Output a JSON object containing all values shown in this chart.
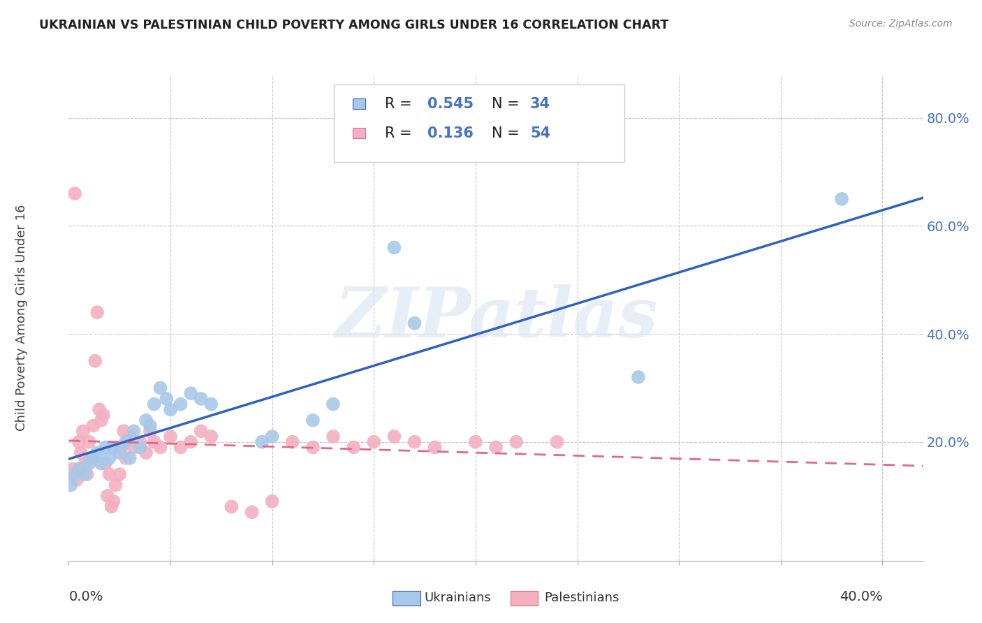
{
  "title": "UKRAINIAN VS PALESTINIAN CHILD POVERTY AMONG GIRLS UNDER 16 CORRELATION CHART",
  "source": "Source: ZipAtlas.com",
  "ylabel": "Child Poverty Among Girls Under 16",
  "ytick_values": [
    0.0,
    0.2,
    0.4,
    0.6,
    0.8
  ],
  "xtick_values": [
    0.0,
    0.05,
    0.1,
    0.15,
    0.2,
    0.25,
    0.3,
    0.35,
    0.4
  ],
  "xlim": [
    0.0,
    0.42
  ],
  "ylim": [
    -0.02,
    0.88
  ],
  "ukrainian_color": "#a8c8e8",
  "palestinian_color": "#f4b0c0",
  "ukrainian_line_color": "#3060c0",
  "palestinian_line_color": "#e06888",
  "watermark": "ZIPatlas",
  "ukrainian_points": [
    [
      0.001,
      0.12
    ],
    [
      0.003,
      0.14
    ],
    [
      0.005,
      0.15
    ],
    [
      0.008,
      0.14
    ],
    [
      0.01,
      0.16
    ],
    [
      0.012,
      0.17
    ],
    [
      0.014,
      0.18
    ],
    [
      0.016,
      0.16
    ],
    [
      0.018,
      0.19
    ],
    [
      0.02,
      0.17
    ],
    [
      0.022,
      0.19
    ],
    [
      0.025,
      0.18
    ],
    [
      0.028,
      0.2
    ],
    [
      0.03,
      0.17
    ],
    [
      0.032,
      0.22
    ],
    [
      0.035,
      0.19
    ],
    [
      0.038,
      0.24
    ],
    [
      0.04,
      0.23
    ],
    [
      0.042,
      0.27
    ],
    [
      0.045,
      0.3
    ],
    [
      0.048,
      0.28
    ],
    [
      0.05,
      0.26
    ],
    [
      0.055,
      0.27
    ],
    [
      0.06,
      0.29
    ],
    [
      0.065,
      0.28
    ],
    [
      0.07,
      0.27
    ],
    [
      0.095,
      0.2
    ],
    [
      0.1,
      0.21
    ],
    [
      0.12,
      0.24
    ],
    [
      0.13,
      0.27
    ],
    [
      0.16,
      0.56
    ],
    [
      0.17,
      0.42
    ],
    [
      0.28,
      0.32
    ],
    [
      0.38,
      0.65
    ]
  ],
  "palestinian_points": [
    [
      0.001,
      0.14
    ],
    [
      0.002,
      0.15
    ],
    [
      0.003,
      0.66
    ],
    [
      0.004,
      0.13
    ],
    [
      0.005,
      0.2
    ],
    [
      0.006,
      0.18
    ],
    [
      0.007,
      0.22
    ],
    [
      0.008,
      0.16
    ],
    [
      0.009,
      0.14
    ],
    [
      0.01,
      0.2
    ],
    [
      0.011,
      0.17
    ],
    [
      0.012,
      0.23
    ],
    [
      0.013,
      0.35
    ],
    [
      0.014,
      0.44
    ],
    [
      0.015,
      0.26
    ],
    [
      0.016,
      0.24
    ],
    [
      0.017,
      0.25
    ],
    [
      0.018,
      0.16
    ],
    [
      0.019,
      0.1
    ],
    [
      0.02,
      0.14
    ],
    [
      0.021,
      0.08
    ],
    [
      0.022,
      0.09
    ],
    [
      0.023,
      0.12
    ],
    [
      0.025,
      0.14
    ],
    [
      0.026,
      0.19
    ],
    [
      0.027,
      0.22
    ],
    [
      0.028,
      0.17
    ],
    [
      0.03,
      0.21
    ],
    [
      0.032,
      0.19
    ],
    [
      0.035,
      0.2
    ],
    [
      0.038,
      0.18
    ],
    [
      0.04,
      0.22
    ],
    [
      0.042,
      0.2
    ],
    [
      0.045,
      0.19
    ],
    [
      0.05,
      0.21
    ],
    [
      0.055,
      0.19
    ],
    [
      0.06,
      0.2
    ],
    [
      0.065,
      0.22
    ],
    [
      0.07,
      0.21
    ],
    [
      0.08,
      0.08
    ],
    [
      0.09,
      0.07
    ],
    [
      0.1,
      0.09
    ],
    [
      0.11,
      0.2
    ],
    [
      0.12,
      0.19
    ],
    [
      0.13,
      0.21
    ],
    [
      0.14,
      0.19
    ],
    [
      0.15,
      0.2
    ],
    [
      0.16,
      0.21
    ],
    [
      0.17,
      0.2
    ],
    [
      0.18,
      0.19
    ],
    [
      0.2,
      0.2
    ],
    [
      0.21,
      0.19
    ],
    [
      0.22,
      0.2
    ],
    [
      0.24,
      0.2
    ]
  ]
}
